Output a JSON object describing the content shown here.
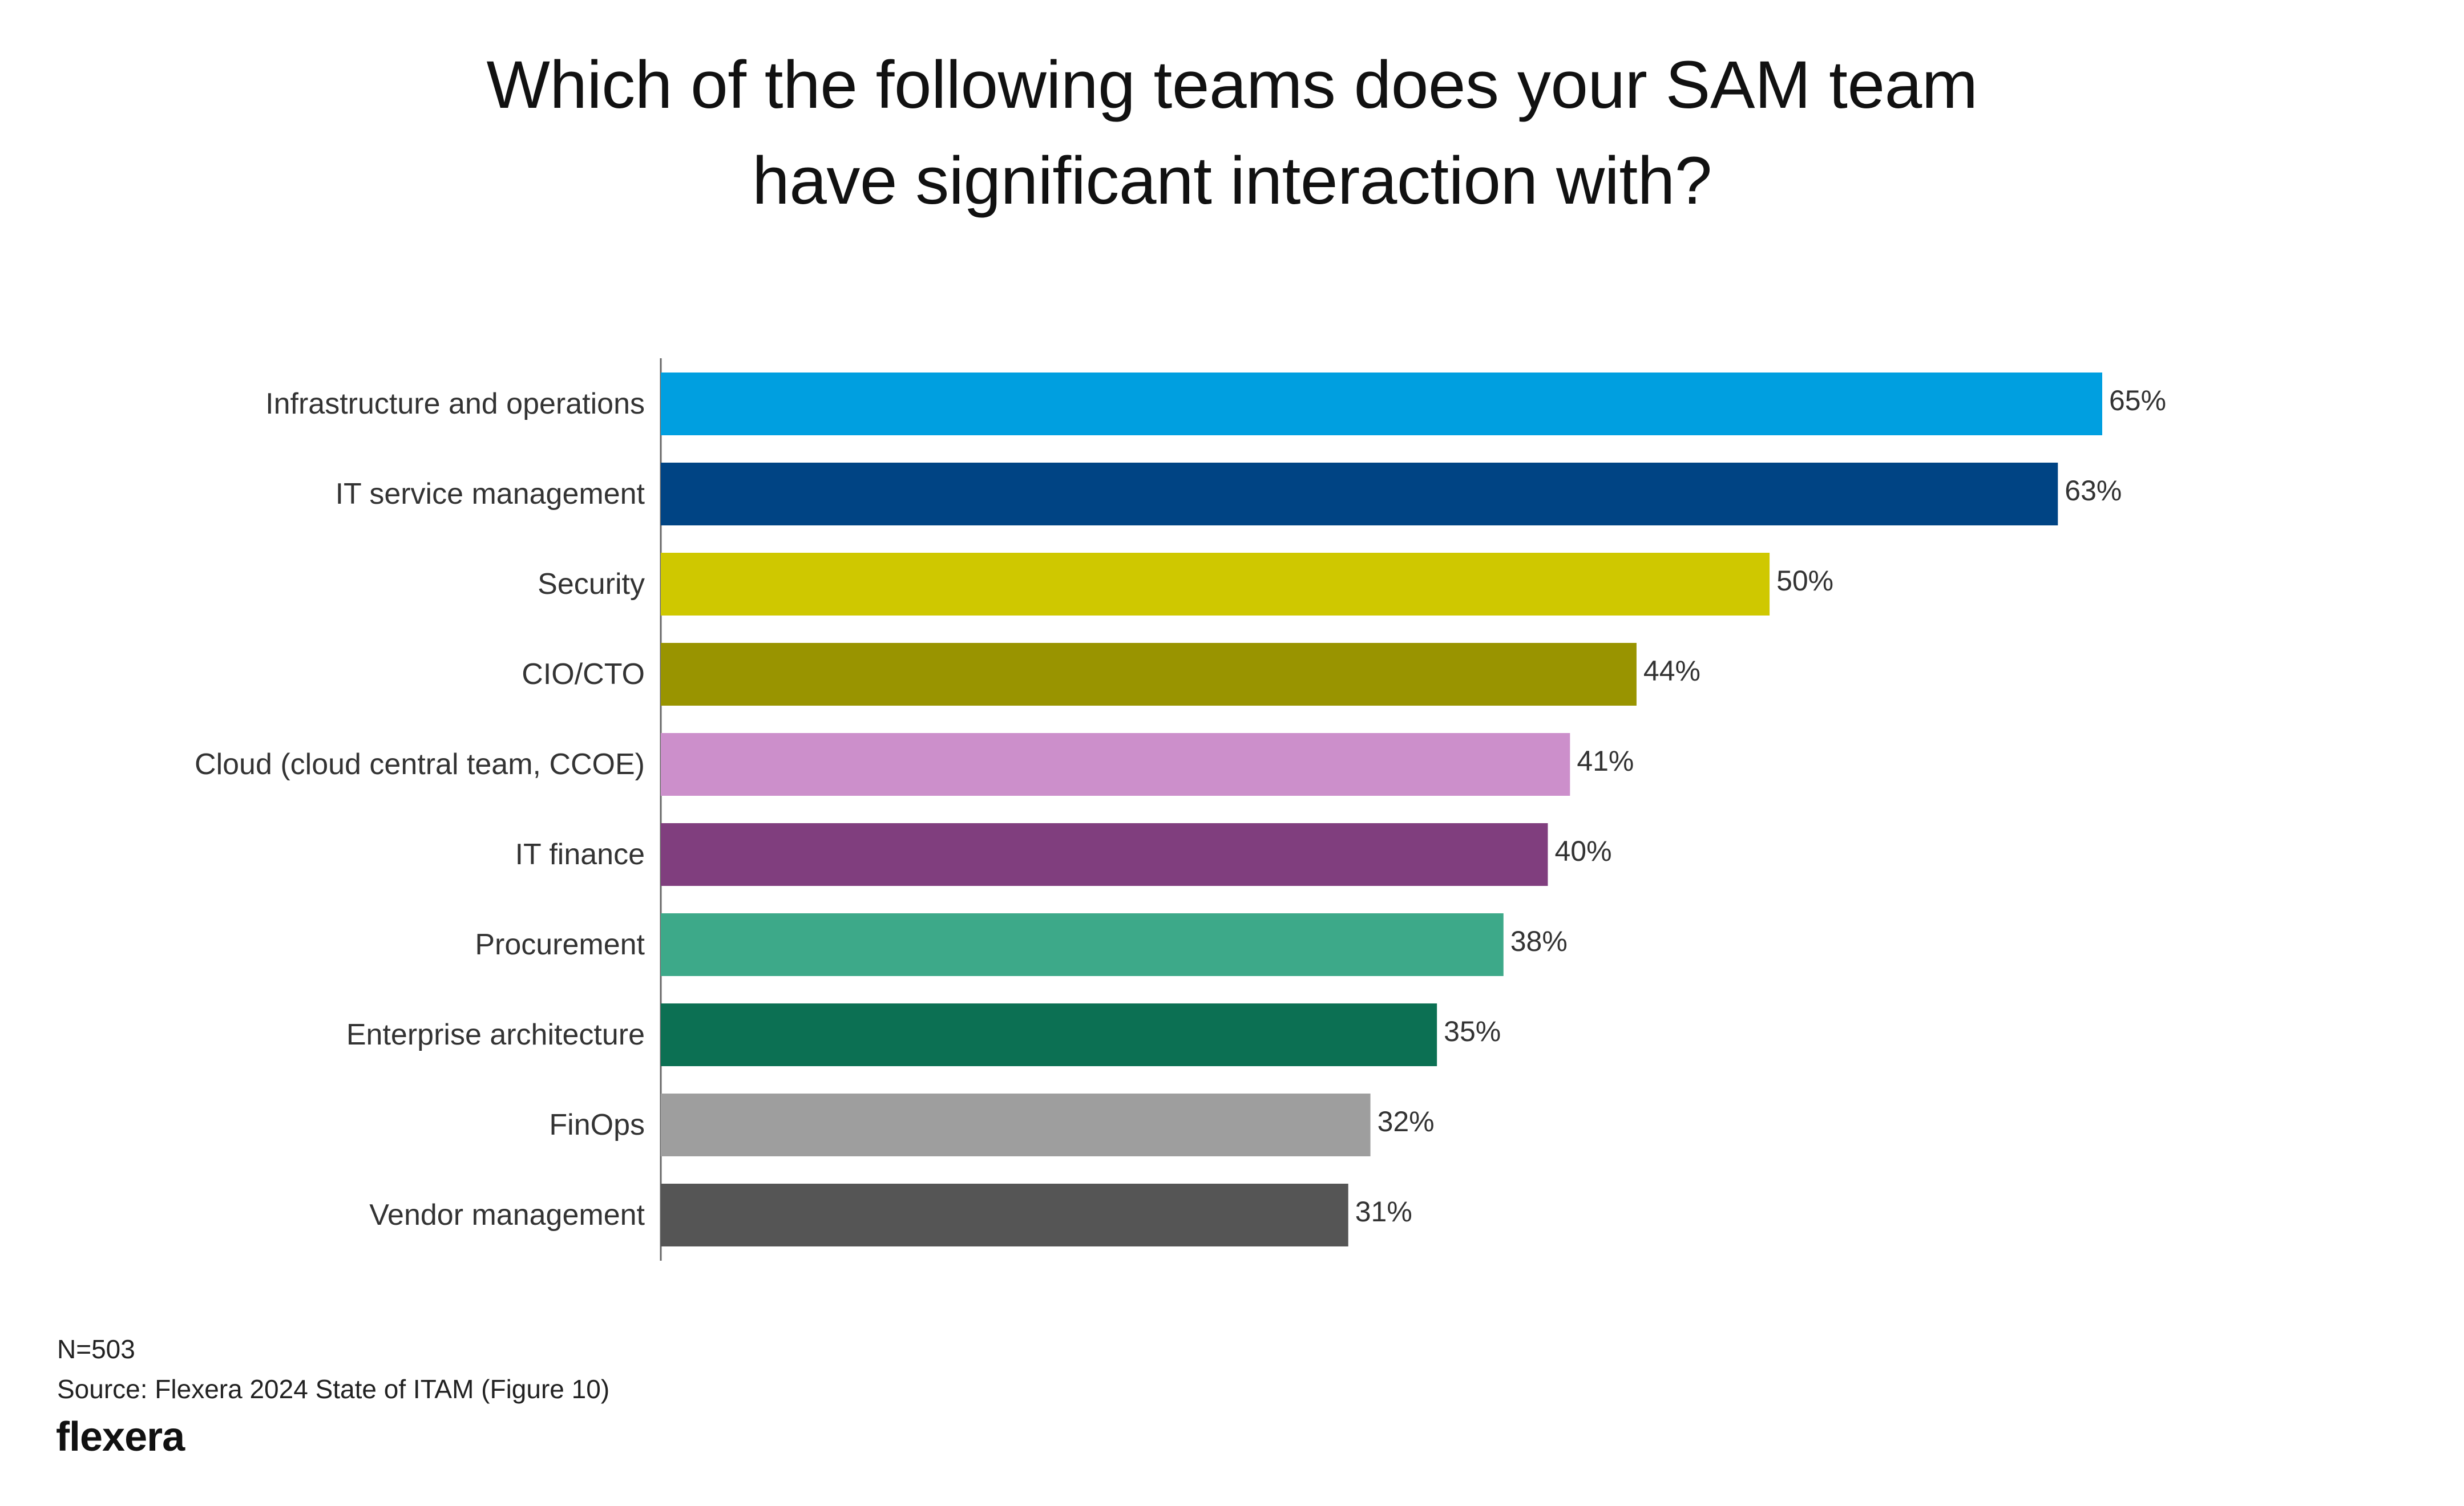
{
  "title_line1": "Which of the following teams does your SAM team",
  "title_line2": "have significant interaction with?",
  "footer": {
    "n": "N=503",
    "source": "Source: Flexera 2024 State of ITAM (Figure 10)",
    "logo_text": "flexera"
  },
  "chart_data": {
    "type": "bar",
    "orientation": "horizontal",
    "title": "Which of the following teams does your SAM team have significant interaction with?",
    "categories": [
      "Infrastructure and operations",
      "IT service management",
      "Security",
      "CIO/CTO",
      "Cloud (cloud central team, CCOE)",
      "IT finance",
      "Procurement",
      "Enterprise architecture",
      "FinOps",
      "Vendor management"
    ],
    "values": [
      65,
      63,
      50,
      44,
      41,
      40,
      38,
      35,
      32,
      31
    ],
    "value_labels": [
      "65%",
      "63%",
      "50%",
      "44%",
      "41%",
      "40%",
      "38%",
      "35%",
      "32%",
      "31%"
    ],
    "unit": "%",
    "colors": [
      "#009FE0",
      "#004484",
      "#CFC800",
      "#999400",
      "#CC8FCB",
      "#803E7E",
      "#3DA989",
      "#0C7053",
      "#9E9E9E",
      "#555555"
    ],
    "xlim": [
      0,
      65
    ],
    "grid": false,
    "legend": "none"
  }
}
